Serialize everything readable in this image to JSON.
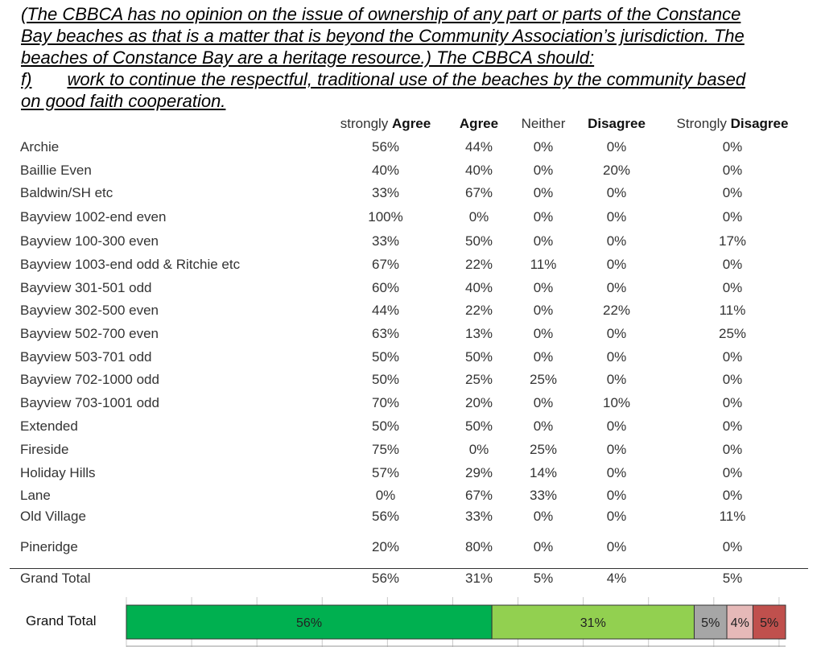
{
  "heading": {
    "line1": "(The CBBCA has no opinion on the issue of ownership of any part or parts of the Constance",
    "line2": "Bay beaches as that is a matter that is beyond the Community Association’s jurisdiction. The",
    "line3": "beaches of Constance Bay are a heritage resource.) The CBBCA should:",
    "line4_marker": "f)",
    "line4_text": "work to continue the respectful, traditional use of the beaches by the community based",
    "line5": "on good faith cooperation."
  },
  "columns": [
    {
      "prefix": "strongly ",
      "bold": "Agree"
    },
    {
      "prefix": "",
      "bold": "Agree"
    },
    {
      "prefix": "Neither",
      "bold": ""
    },
    {
      "prefix": "",
      "bold": "Disagree"
    },
    {
      "prefix": "Strongly ",
      "bold": "Disagree"
    }
  ],
  "rows": [
    {
      "label": "Archie",
      "values": [
        "56%",
        "44%",
        "0%",
        "0%",
        "0%"
      ]
    },
    {
      "label": "Baillie Even",
      "values": [
        "40%",
        "40%",
        "0%",
        "20%",
        "0%"
      ]
    },
    {
      "label": "Baldwin/SH etc",
      "values": [
        "33%",
        "67%",
        "0%",
        "0%",
        "0%"
      ]
    },
    {
      "label": "Bayview 1002-end even",
      "values": [
        "100%",
        "0%",
        "0%",
        "0%",
        "0%"
      ]
    },
    {
      "label": "Bayview 100-300 even",
      "values": [
        "33%",
        "50%",
        "0%",
        "0%",
        "17%"
      ]
    },
    {
      "label": "Bayview 1003-end odd & Ritchie etc",
      "values": [
        "67%",
        "22%",
        "11%",
        "0%",
        "0%"
      ]
    },
    {
      "label": "Bayview 301-501 odd",
      "values": [
        "60%",
        "40%",
        "0%",
        "0%",
        "0%"
      ]
    },
    {
      "label": "Bayview 302-500 even",
      "values": [
        "44%",
        "22%",
        "0%",
        "22%",
        "11%"
      ]
    },
    {
      "label": "Bayview 502-700 even",
      "values": [
        "63%",
        "13%",
        "0%",
        "0%",
        "25%"
      ]
    },
    {
      "label": "Bayview 503-701 odd",
      "values": [
        "50%",
        "50%",
        "0%",
        "0%",
        "0%"
      ]
    },
    {
      "label": "Bayview 702-1000 odd",
      "values": [
        "50%",
        "25%",
        "25%",
        "0%",
        "0%"
      ]
    },
    {
      "label": "Bayview 703-1001 odd",
      "values": [
        "70%",
        "20%",
        "0%",
        "10%",
        "0%"
      ]
    },
    {
      "label": "Extended",
      "values": [
        "50%",
        "50%",
        "0%",
        "0%",
        "0%"
      ]
    },
    {
      "label": "Fireside",
      "values": [
        "75%",
        "0%",
        "25%",
        "0%",
        "0%"
      ]
    },
    {
      "label": "Holiday Hills",
      "values": [
        "57%",
        "29%",
        "14%",
        "0%",
        "0%"
      ]
    },
    {
      "label": "Lane",
      "values": [
        "0%",
        "67%",
        "33%",
        "0%",
        "0%"
      ]
    },
    {
      "label": "Old Village",
      "values": [
        "56%",
        "33%",
        "0%",
        "0%",
        "11%"
      ]
    },
    {
      "label": "Pineridge",
      "values": [
        "20%",
        "80%",
        "0%",
        "0%",
        "0%"
      ]
    }
  ],
  "total": {
    "label": "Grand Total",
    "values": [
      "56%",
      "31%",
      "5%",
      "4%",
      "5%"
    ]
  },
  "chart_data": {
    "type": "bar",
    "orientation": "horizontal",
    "stacked": true,
    "categories": [
      "Grand Total"
    ],
    "series": [
      {
        "values": [
          56
        ],
        "color": "#00b050"
      },
      {
        "values": [
          31
        ],
        "color": "#92d050"
      },
      {
        "values": [
          5
        ],
        "color": "#a6a6a6"
      },
      {
        "values": [
          4
        ],
        "color": "#e6b9b8"
      },
      {
        "values": [
          5
        ],
        "color": "#c0504d"
      }
    ],
    "data_labels": [
      "56%",
      "31%",
      "5%",
      "4%",
      "5%"
    ],
    "xlim": [
      0,
      101
    ],
    "grid": true,
    "legend": false
  }
}
